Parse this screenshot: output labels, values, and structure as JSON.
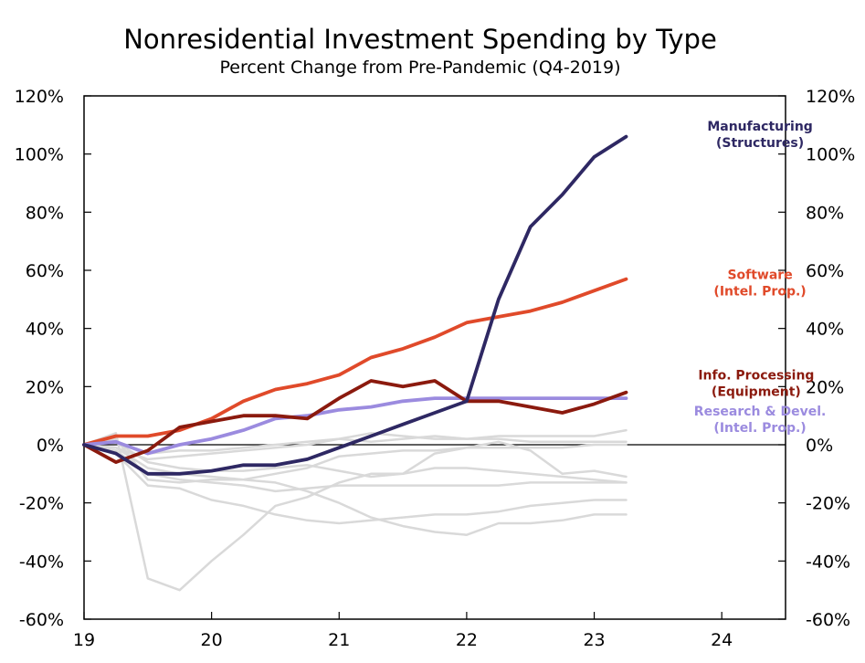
{
  "chart_data": {
    "type": "line",
    "title": "Nonresidential Investment Spending by Type",
    "subtitle": "Percent Change from Pre-Pandemic (Q4-2019)",
    "xlabel": "",
    "ylabel": "",
    "x_ticks": [
      19,
      20,
      21,
      22,
      23,
      24
    ],
    "x_tick_labels": [
      "19",
      "20",
      "21",
      "22",
      "23",
      "24"
    ],
    "xlim": [
      19,
      24.5
    ],
    "ylim": [
      -60,
      120
    ],
    "y_ticks": [
      -60,
      -40,
      -20,
      0,
      20,
      40,
      60,
      80,
      100,
      120
    ],
    "y_tick_labels": [
      "-60%",
      "-40%",
      "-20%",
      "0%",
      "20%",
      "40%",
      "60%",
      "80%",
      "100%",
      "120%"
    ],
    "y_axes": "left-and-right",
    "grid": false,
    "zero_line": true,
    "x": [
      19.0,
      19.25,
      19.5,
      19.75,
      20.0,
      20.25,
      20.5,
      20.75,
      21.0,
      21.25,
      21.5,
      21.75,
      22.0,
      22.25,
      22.5,
      22.75,
      23.0,
      23.25
    ],
    "series": [
      {
        "name": "",
        "color": "#d9d9d9",
        "values": [
          0,
          4,
          -46,
          -50,
          -40,
          -31,
          -21,
          -18,
          -13,
          -10,
          -10,
          -3,
          -1,
          1,
          -2,
          -10,
          -9,
          -11
        ]
      },
      {
        "name": "",
        "color": "#d9d9d9",
        "values": [
          0,
          -3,
          -14,
          -15,
          -19,
          -21,
          -24,
          -26,
          -27,
          -26,
          -25,
          -24,
          -24,
          -23,
          -21,
          -20,
          -19,
          -19
        ]
      },
      {
        "name": "",
        "color": "#d9d9d9",
        "values": [
          0,
          -2,
          -10,
          -12,
          -13,
          -14,
          -16,
          -15,
          -14,
          -14,
          -14,
          -14,
          -14,
          -14,
          -13,
          -13,
          -13,
          -13
        ]
      },
      {
        "name": "",
        "color": "#d9d9d9",
        "values": [
          0,
          -1,
          -8,
          -10,
          -11,
          -12,
          -10,
          -8,
          -4,
          -3,
          -2,
          -2,
          -1,
          -1,
          -1,
          -1,
          0,
          0
        ]
      },
      {
        "name": "",
        "color": "#d9d9d9",
        "values": [
          0,
          -1,
          -5,
          -4,
          -3,
          -2,
          -1,
          0,
          2,
          4,
          3,
          2,
          2,
          3,
          3,
          3,
          3,
          5
        ]
      },
      {
        "name": "",
        "color": "#d9d9d9",
        "values": [
          0,
          1,
          -3,
          -2,
          -2,
          -1,
          0,
          1,
          2,
          1,
          2,
          3,
          2,
          2,
          1,
          1,
          1,
          1
        ]
      },
      {
        "name": "",
        "color": "#d9d9d9",
        "values": [
          0,
          1,
          -6,
          -8,
          -9,
          -9,
          -8,
          -7,
          -9,
          -11,
          -10,
          -8,
          -8,
          -9,
          -10,
          -11,
          -12,
          -13
        ]
      },
      {
        "name": "",
        "color": "#d9d9d9",
        "values": [
          0,
          2,
          -12,
          -13,
          -12,
          -12,
          -13,
          -16,
          -20,
          -25,
          -28,
          -30,
          -31,
          -27,
          -27,
          -26,
          -24,
          -24
        ]
      },
      {
        "name": "Software (Intel. Prop.)",
        "color": "#e04a2a",
        "values": [
          0,
          3,
          3,
          5,
          9,
          15,
          19,
          21,
          24,
          30,
          33,
          37,
          42,
          44,
          46,
          49,
          53,
          57
        ]
      },
      {
        "name": "Research & Devel. (Intel. Prop.)",
        "color": "#9b8bdf",
        "values": [
          0,
          1,
          -3,
          0,
          2,
          5,
          9,
          10,
          12,
          13,
          15,
          16,
          16,
          16,
          16,
          16,
          16,
          16
        ]
      },
      {
        "name": "Info. Processing (Equipment)",
        "color": "#8b1a0e",
        "values": [
          0,
          -6,
          -2,
          6,
          8,
          10,
          10,
          9,
          16,
          22,
          20,
          22,
          15,
          15,
          13,
          11,
          14,
          18
        ]
      },
      {
        "name": "Manufacturing (Structures)",
        "color": "#2e2863",
        "values": [
          0,
          -3,
          -10,
          -10,
          -9,
          -7,
          -7,
          -5,
          -1,
          3,
          7,
          11,
          15,
          50,
          75,
          86,
          99,
          106
        ]
      }
    ],
    "annotations": [
      {
        "lines": [
          "Manufacturing",
          "(Structures)"
        ],
        "color": "#2e2863",
        "at": [
          24.3,
          108
        ]
      },
      {
        "lines": [
          "Software",
          "(Intel. Prop.)"
        ],
        "color": "#e04a2a",
        "at": [
          24.3,
          57
        ]
      },
      {
        "lines": [
          "Info. Processing",
          "(Equipment)"
        ],
        "color": "#8b1a0e",
        "at": [
          24.27,
          22.5
        ]
      },
      {
        "lines": [
          "Research & Devel.",
          "(Intel. Prop.)"
        ],
        "color": "#9b8bdf",
        "at": [
          24.3,
          10
        ]
      }
    ]
  }
}
